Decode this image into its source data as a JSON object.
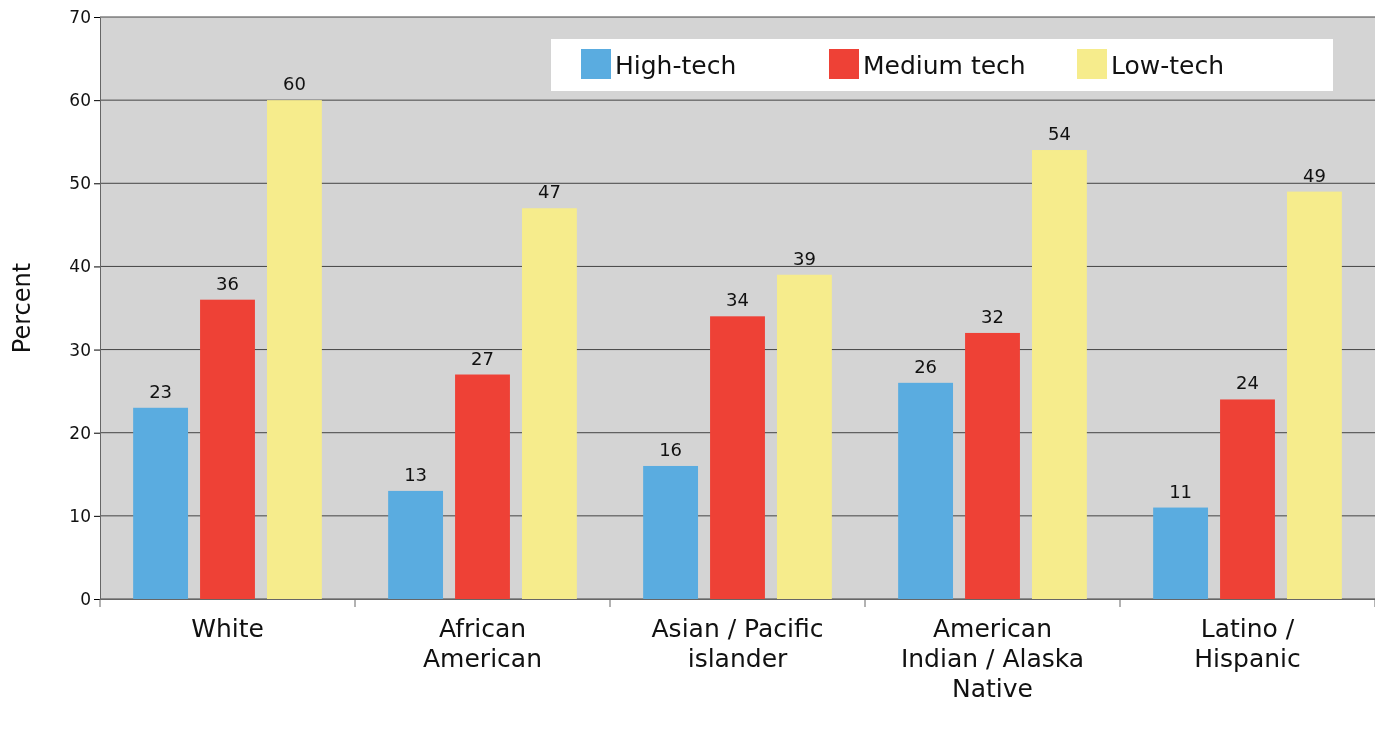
{
  "chart_data": {
    "type": "bar",
    "ylabel": "Percent",
    "categories": [
      "White",
      "African American",
      "Asian / Pacific islander",
      "American Indian / Alaska Native",
      "Latino / Hispanic"
    ],
    "series": [
      {
        "name": "High-tech",
        "color": "#5aace0",
        "values": [
          23,
          13,
          16,
          26,
          11
        ]
      },
      {
        "name": "Medium tech",
        "color": "#ee4136",
        "values": [
          36,
          27,
          34,
          32,
          24
        ]
      },
      {
        "name": "Low-tech",
        "color": "#f6ec8c",
        "values": [
          60,
          47,
          39,
          54,
          49
        ]
      }
    ],
    "ylim": [
      0,
      70
    ],
    "yticks": [
      0,
      10,
      20,
      30,
      40,
      50,
      60,
      70
    ],
    "grid": "y",
    "legend": "top right",
    "data_labels": true
  }
}
